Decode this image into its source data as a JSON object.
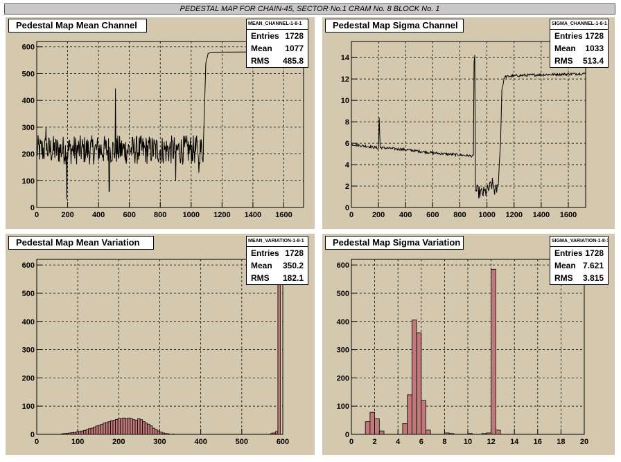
{
  "header": {
    "title": "PEDESTAL MAP FOR CHAIN-45, SECTOR No.1 CRAM No. 8 BLOCK No. 1"
  },
  "footer_text": "",
  "colors": {
    "pad_bg": "#d4c8ae",
    "hist_fill": "#c07878",
    "hist_stroke": "#000000"
  },
  "chart_data": [
    {
      "type": "line",
      "title": "Pedestal Map Mean Channel",
      "stats": {
        "name": "MEAN_CHANNEL-1-8-1",
        "entries": "1728",
        "mean": "1077",
        "rms": "485.8"
      },
      "xlim": [
        0,
        1728
      ],
      "ylim": [
        0,
        620
      ],
      "xticks": [
        0,
        200,
        400,
        600,
        800,
        1000,
        1200,
        1400,
        1600
      ],
      "yticks": [
        0,
        100,
        200,
        300,
        400,
        500,
        600
      ],
      "segments": [
        {
          "x0": 0,
          "x1": 1080,
          "base": 215,
          "amp": 55,
          "spikes": [
            [
              60,
              300
            ],
            [
              195,
              30
            ],
            [
              470,
              60
            ],
            [
              510,
              445
            ],
            [
              900,
              100
            ],
            [
              1050,
              130
            ]
          ]
        },
        {
          "ramp": [
            [
              1080,
              250
            ],
            [
              1095,
              540
            ],
            [
              1110,
              575
            ],
            [
              1130,
              580
            ],
            [
              1728,
              582
            ]
          ]
        }
      ]
    },
    {
      "type": "line",
      "title": "Pedestal Map Sigma Channel",
      "stats": {
        "name": "SIGMA_CHANNEL-1-8-1",
        "entries": "1728",
        "mean": "1033",
        "rms": "513.4"
      },
      "xlim": [
        0,
        1728
      ],
      "ylim": [
        0,
        15.5
      ],
      "xticks": [
        0,
        200,
        400,
        600,
        800,
        1000,
        1200,
        1400,
        1600
      ],
      "yticks": [
        0,
        2,
        4,
        6,
        8,
        10,
        12,
        14
      ],
      "profile": [
        [
          0,
          5.9
        ],
        [
          180,
          5.6
        ],
        [
          200,
          5.5
        ],
        [
          205,
          8.4
        ],
        [
          212,
          5.6
        ],
        [
          400,
          5.4
        ],
        [
          600,
          5.1
        ],
        [
          800,
          4.9
        ],
        [
          900,
          4.8
        ],
        [
          905,
          13.5
        ],
        [
          910,
          14.3
        ],
        [
          915,
          1.6
        ],
        [
          960,
          1.3
        ],
        [
          1000,
          1.5
        ],
        [
          1040,
          2.2
        ],
        [
          1060,
          1.5
        ],
        [
          1080,
          1.8
        ],
        [
          1100,
          6
        ],
        [
          1110,
          11
        ],
        [
          1130,
          12.2
        ],
        [
          1200,
          12.3
        ],
        [
          1400,
          12.4
        ],
        [
          1728,
          12.5
        ]
      ]
    },
    {
      "type": "bar",
      "title": "Pedestal Map Mean Variation",
      "stats": {
        "name": "MEAN_VARIATION-1-8-1",
        "entries": "1728",
        "mean": "350.2",
        "rms": "182.1"
      },
      "xlim": [
        0,
        600
      ],
      "ylim": [
        0,
        620
      ],
      "xticks": [
        0,
        100,
        200,
        300,
        400,
        500,
        600
      ],
      "yticks": [
        0,
        100,
        200,
        300,
        400,
        500,
        600
      ],
      "bin_width": 6,
      "bins": [
        [
          60,
          2
        ],
        [
          66,
          3
        ],
        [
          72,
          4
        ],
        [
          78,
          5
        ],
        [
          84,
          6
        ],
        [
          90,
          7
        ],
        [
          96,
          9
        ],
        [
          102,
          10
        ],
        [
          108,
          12
        ],
        [
          114,
          14
        ],
        [
          120,
          17
        ],
        [
          126,
          20
        ],
        [
          132,
          22
        ],
        [
          138,
          26
        ],
        [
          144,
          30
        ],
        [
          150,
          32
        ],
        [
          156,
          36
        ],
        [
          162,
          40
        ],
        [
          168,
          42
        ],
        [
          174,
          45
        ],
        [
          180,
          48
        ],
        [
          186,
          50
        ],
        [
          192,
          53
        ],
        [
          198,
          55
        ],
        [
          204,
          56
        ],
        [
          210,
          58
        ],
        [
          216,
          55
        ],
        [
          222,
          58
        ],
        [
          228,
          55
        ],
        [
          234,
          52
        ],
        [
          240,
          50
        ],
        [
          246,
          55
        ],
        [
          252,
          52
        ],
        [
          258,
          45
        ],
        [
          264,
          40
        ],
        [
          270,
          36
        ],
        [
          276,
          30
        ],
        [
          282,
          22
        ],
        [
          288,
          18
        ],
        [
          294,
          12
        ],
        [
          300,
          8
        ],
        [
          306,
          5
        ],
        [
          312,
          3
        ],
        [
          318,
          2
        ],
        [
          330,
          1
        ],
        [
          570,
          3
        ],
        [
          576,
          5
        ],
        [
          582,
          10
        ],
        [
          588,
          540
        ]
      ]
    },
    {
      "type": "bar",
      "title": "Pedestal Map Sigma Variation",
      "stats": {
        "name": "SIGMA_VARIATION-1-8-1",
        "entries": "1728",
        "mean": "7.621",
        "rms": "3.815"
      },
      "xlim": [
        0,
        20
      ],
      "ylim": [
        0,
        620
      ],
      "xticks": [
        0,
        2,
        4,
        6,
        8,
        10,
        12,
        14,
        16,
        18,
        20
      ],
      "yticks": [
        0,
        100,
        200,
        300,
        400,
        500,
        600
      ],
      "bin_width": 0.4,
      "bins": [
        [
          1.2,
          45
        ],
        [
          1.6,
          78
        ],
        [
          2.0,
          55
        ],
        [
          2.4,
          12
        ],
        [
          4.4,
          38
        ],
        [
          4.8,
          140
        ],
        [
          5.2,
          405
        ],
        [
          5.6,
          360
        ],
        [
          6.0,
          120
        ],
        [
          6.4,
          15
        ],
        [
          8.0,
          5
        ],
        [
          8.4,
          3
        ],
        [
          10.0,
          3
        ],
        [
          11.2,
          3
        ],
        [
          11.6,
          5
        ],
        [
          12.0,
          585
        ],
        [
          12.4,
          15
        ]
      ]
    }
  ]
}
